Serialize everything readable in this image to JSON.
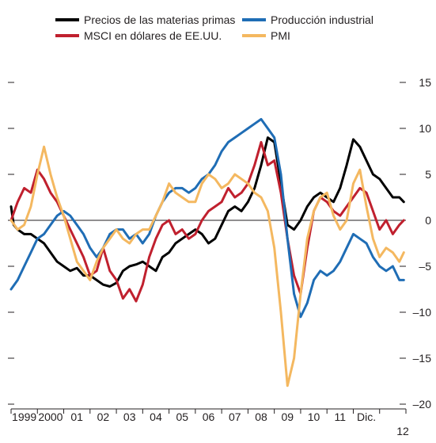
{
  "legend": {
    "commodity": "Precios de las materias primas",
    "msci": "MSCI en dólares de EE.UU.",
    "industrial": "Producción industrial",
    "pmi": "PMI"
  },
  "colors": {
    "commodity": "#000000",
    "msci": "#c0202e",
    "industrial": "#1f6db5",
    "pmi": "#f4b860"
  },
  "chart_data": {
    "type": "line",
    "title": "",
    "xlabel": "",
    "ylabel": "",
    "ylim": [
      -20,
      15
    ],
    "y_ticks": [
      15,
      10,
      5,
      0,
      -5,
      -10,
      -15,
      -20
    ],
    "y_tick_labels": [
      "15",
      "10",
      "5",
      "0",
      "–5",
      "–10",
      "–15",
      "–20"
    ],
    "x_range": [
      1998.0,
      2013.0
    ],
    "x_tick_labels": [
      "1999",
      "2000",
      "01",
      "02",
      "03",
      "04",
      "05",
      "06",
      "07",
      "08",
      "09",
      "10",
      "11",
      "Dic.",
      "12"
    ],
    "series": [
      {
        "key": "commodity",
        "name": "Precios de las materias primas",
        "x": [
          1998.0,
          1998.1,
          1998.25,
          1998.5,
          1998.75,
          1999.0,
          1999.25,
          1999.5,
          1999.75,
          2000.0,
          2000.25,
          2000.5,
          2000.75,
          2001.0,
          2001.25,
          2001.5,
          2001.75,
          2002.0,
          2002.25,
          2002.5,
          2002.75,
          2003.0,
          2003.25,
          2003.5,
          2003.75,
          2004.0,
          2004.25,
          2004.5,
          2004.75,
          2005.0,
          2005.25,
          2005.5,
          2005.75,
          2006.0,
          2006.25,
          2006.5,
          2006.75,
          2007.0,
          2007.25,
          2007.5,
          2007.75,
          2008.0,
          2008.25,
          2008.5,
          2008.75,
          2009.0,
          2009.25,
          2009.5,
          2009.75,
          2010.0,
          2010.25,
          2010.5,
          2010.75,
          2011.0,
          2011.25,
          2011.5,
          2011.75,
          2012.0,
          2012.25,
          2012.5,
          2012.75,
          2012.92
        ],
        "y": [
          1.5,
          -0.5,
          -1.0,
          -1.5,
          -1.5,
          -2.0,
          -2.5,
          -3.5,
          -4.5,
          -5.0,
          -5.5,
          -5.2,
          -6.0,
          -6.0,
          -6.5,
          -7.0,
          -7.2,
          -6.8,
          -5.5,
          -5.0,
          -4.8,
          -4.5,
          -5.0,
          -5.5,
          -4.0,
          -3.5,
          -2.5,
          -2.0,
          -1.5,
          -1.0,
          -1.5,
          -2.5,
          -2.0,
          -0.5,
          1.0,
          1.5,
          1.0,
          2.0,
          3.5,
          6.0,
          9.0,
          8.5,
          4.0,
          -0.5,
          -1.0,
          0.0,
          1.5,
          2.5,
          3.0,
          2.5,
          2.0,
          3.5,
          6.0,
          8.8,
          8.0,
          6.5,
          5.0,
          4.5,
          3.5,
          2.5,
          2.5,
          2.0
        ]
      },
      {
        "key": "msci",
        "name": "MSCI en dólares de EE.UU.",
        "x": [
          1998.0,
          1998.25,
          1998.5,
          1998.75,
          1999.0,
          1999.25,
          1999.5,
          1999.75,
          2000.0,
          2000.25,
          2000.5,
          2000.75,
          2001.0,
          2001.25,
          2001.5,
          2001.75,
          2002.0,
          2002.25,
          2002.5,
          2002.75,
          2003.0,
          2003.25,
          2003.5,
          2003.75,
          2004.0,
          2004.25,
          2004.5,
          2004.75,
          2005.0,
          2005.25,
          2005.5,
          2005.75,
          2006.0,
          2006.25,
          2006.5,
          2006.75,
          2007.0,
          2007.25,
          2007.5,
          2007.75,
          2008.0,
          2008.25,
          2008.5,
          2008.75,
          2009.0,
          2009.25,
          2009.5,
          2009.75,
          2010.0,
          2010.25,
          2010.5,
          2010.75,
          2011.0,
          2011.25,
          2011.5,
          2011.75,
          2012.0,
          2012.25,
          2012.5,
          2012.75,
          2012.92
        ],
        "y": [
          0.0,
          2.0,
          3.5,
          3.0,
          5.5,
          4.5,
          3.0,
          2.0,
          0.5,
          -1.0,
          -2.5,
          -4.0,
          -6.0,
          -5.5,
          -3.0,
          -5.5,
          -6.5,
          -8.5,
          -7.5,
          -8.8,
          -7.0,
          -4.0,
          -2.0,
          -0.5,
          0.0,
          -1.5,
          -1.0,
          -2.0,
          -1.5,
          0.0,
          1.0,
          1.5,
          2.0,
          3.5,
          2.5,
          3.0,
          4.0,
          6.0,
          8.5,
          6.0,
          6.5,
          3.0,
          -2.0,
          -6.0,
          -8.0,
          -3.0,
          1.0,
          2.5,
          2.0,
          1.0,
          0.5,
          1.5,
          2.5,
          3.5,
          3.0,
          1.0,
          -1.0,
          0.0,
          -1.5,
          -0.5,
          0.0
        ]
      },
      {
        "key": "industrial",
        "name": "Producción industrial",
        "x": [
          1998.0,
          1998.25,
          1998.5,
          1998.75,
          1999.0,
          1999.25,
          1999.5,
          1999.75,
          2000.0,
          2000.25,
          2000.5,
          2000.75,
          2001.0,
          2001.25,
          2001.5,
          2001.75,
          2002.0,
          2002.25,
          2002.5,
          2002.75,
          2003.0,
          2003.25,
          2003.5,
          2003.75,
          2004.0,
          2004.25,
          2004.5,
          2004.75,
          2005.0,
          2005.25,
          2005.5,
          2005.75,
          2006.0,
          2006.25,
          2006.5,
          2006.75,
          2007.0,
          2007.25,
          2007.5,
          2007.75,
          2008.0,
          2008.25,
          2008.5,
          2008.75,
          2009.0,
          2009.25,
          2009.5,
          2009.75,
          2010.0,
          2010.25,
          2010.5,
          2010.75,
          2011.0,
          2011.25,
          2011.5,
          2011.75,
          2012.0,
          2012.25,
          2012.5,
          2012.75,
          2012.92
        ],
        "y": [
          -7.5,
          -6.5,
          -5.0,
          -3.5,
          -2.0,
          -1.5,
          -0.5,
          0.5,
          1.0,
          0.5,
          -0.5,
          -1.5,
          -3.0,
          -4.0,
          -3.0,
          -1.5,
          -1.0,
          -1.0,
          -2.0,
          -1.5,
          -2.5,
          -1.5,
          0.5,
          2.0,
          3.0,
          3.5,
          3.5,
          3.0,
          3.5,
          4.5,
          5.0,
          6.0,
          7.5,
          8.5,
          9.0,
          9.5,
          10.0,
          10.5,
          11.0,
          10.0,
          9.0,
          5.0,
          -2.0,
          -8.0,
          -10.5,
          -9.0,
          -6.5,
          -5.5,
          -6.0,
          -5.5,
          -4.5,
          -3.0,
          -1.5,
          -2.0,
          -2.5,
          -4.0,
          -5.0,
          -5.5,
          -5.0,
          -6.5,
          -6.5
        ]
      },
      {
        "key": "pmi",
        "name": "PMI",
        "x": [
          1998.0,
          1998.25,
          1998.5,
          1998.75,
          1999.0,
          1999.25,
          1999.5,
          1999.75,
          2000.0,
          2000.25,
          2000.5,
          2000.75,
          2001.0,
          2001.25,
          2001.5,
          2001.75,
          2002.0,
          2002.25,
          2002.5,
          2002.75,
          2003.0,
          2003.25,
          2003.5,
          2003.75,
          2004.0,
          2004.25,
          2004.5,
          2004.75,
          2005.0,
          2005.25,
          2005.5,
          2005.75,
          2006.0,
          2006.25,
          2006.5,
          2006.75,
          2007.0,
          2007.25,
          2007.5,
          2007.75,
          2008.0,
          2008.25,
          2008.5,
          2008.75,
          2009.0,
          2009.25,
          2009.5,
          2009.75,
          2010.0,
          2010.25,
          2010.5,
          2010.75,
          2011.0,
          2011.25,
          2011.5,
          2011.75,
          2012.0,
          2012.25,
          2012.5,
          2012.75,
          2012.92
        ],
        "y": [
          0.0,
          -1.0,
          -0.5,
          1.5,
          5.0,
          8.0,
          5.0,
          2.5,
          0.5,
          -2.0,
          -4.5,
          -5.5,
          -6.5,
          -4.5,
          -3.0,
          -2.0,
          -1.0,
          -2.0,
          -2.5,
          -1.5,
          -1.0,
          -1.0,
          0.5,
          2.0,
          4.0,
          3.0,
          2.5,
          2.0,
          2.0,
          4.0,
          5.0,
          4.5,
          3.5,
          4.0,
          5.0,
          4.5,
          4.0,
          3.0,
          2.5,
          1.0,
          -3.0,
          -10.0,
          -18.0,
          -15.0,
          -8.0,
          -2.0,
          1.0,
          2.5,
          3.0,
          0.5,
          -1.0,
          0.0,
          4.0,
          5.5,
          1.5,
          -2.0,
          -4.0,
          -3.0,
          -3.5,
          -4.5,
          -3.5
        ]
      }
    ]
  }
}
